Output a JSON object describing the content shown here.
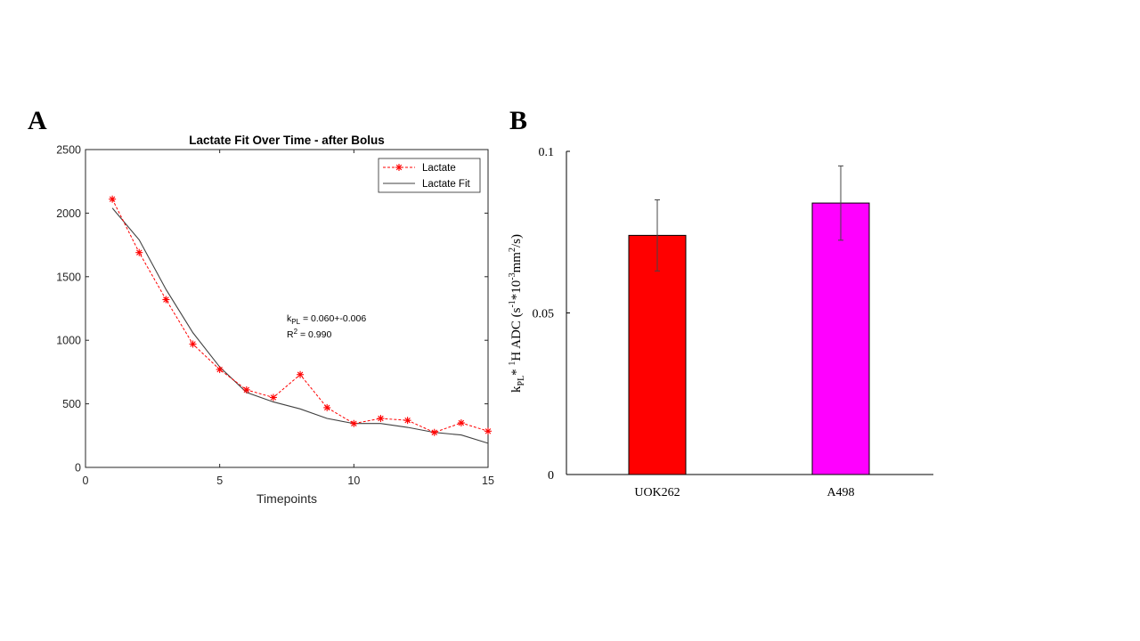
{
  "panel_a_label": "A",
  "panel_b_label": "B",
  "chart_data": [
    {
      "type": "line",
      "title": "Lactate Fit Over Time - after Bolus",
      "xlabel": "Timepoints",
      "ylabel": "",
      "xlim": [
        0,
        15
      ],
      "ylim": [
        0,
        2500
      ],
      "xticks": [
        0,
        5,
        10,
        15
      ],
      "yticks": [
        0,
        500,
        1000,
        1500,
        2000,
        2500
      ],
      "grid": false,
      "legend_position": "top-right",
      "series": [
        {
          "name": "Lactate",
          "style": "dashed-star",
          "color": "#ff0000",
          "x": [
            1,
            2,
            3,
            4,
            5,
            6,
            7,
            8,
            9,
            10,
            11,
            12,
            13,
            14,
            15
          ],
          "y": [
            2110,
            1690,
            1320,
            970,
            770,
            610,
            550,
            730,
            470,
            345,
            385,
            370,
            275,
            350,
            285
          ]
        },
        {
          "name": "Lactate Fit",
          "style": "solid",
          "color": "#404040",
          "x": [
            1,
            2,
            3,
            4,
            5,
            6,
            7,
            8,
            9,
            10,
            11,
            12,
            13,
            14,
            15
          ],
          "y": [
            2040,
            1790,
            1400,
            1060,
            790,
            590,
            515,
            460,
            385,
            345,
            345,
            315,
            275,
            255,
            190
          ]
        }
      ],
      "annotation": {
        "kpl_prefix": "k",
        "kpl_sub": "PL",
        "kpl_value": " = 0.060+-0.006",
        "r2_prefix": "R",
        "r2_sup": "2",
        "r2_value": " = 0.990"
      }
    },
    {
      "type": "bar",
      "categories": [
        "UOK262",
        "A498"
      ],
      "values": [
        0.074,
        0.084
      ],
      "errors": [
        0.011,
        0.0115
      ],
      "colors": [
        "#ff0000",
        "#ff00ff"
      ],
      "ylim": [
        0,
        0.1
      ],
      "yticks": [
        0,
        0.05,
        0.1
      ],
      "ytick_labels": [
        "0",
        "0.05",
        "0.1"
      ],
      "ylabel_parts": {
        "k": "k",
        "k_sub": "PL",
        "star": "* ",
        "h_sup": "1",
        "h_adc": "H ADC  (s",
        "exp1": "-1",
        "mult": "*10",
        "exp2": "-3",
        "mm": "mm",
        "exp3": "2",
        "tail": "/s)"
      },
      "xlabel": "",
      "title": ""
    }
  ]
}
